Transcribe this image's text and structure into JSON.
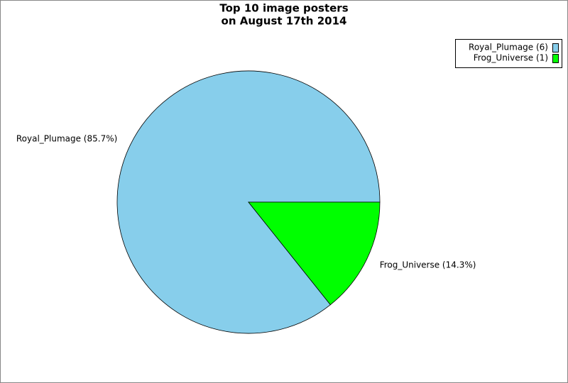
{
  "chart_data": {
    "type": "pie",
    "title": [
      "Top 10 image posters",
      "on August 17th 2014"
    ],
    "labels": [
      "Royal_Plumage (6)",
      "Frog_Universe (1)"
    ],
    "values": [
      6,
      1
    ],
    "value_labels": [
      "Royal_Plumage (85.7%)",
      "Frog_Universe (14.3%)"
    ],
    "colors": [
      "#87ceeb",
      "#00ff00"
    ],
    "legend": "top-right"
  }
}
